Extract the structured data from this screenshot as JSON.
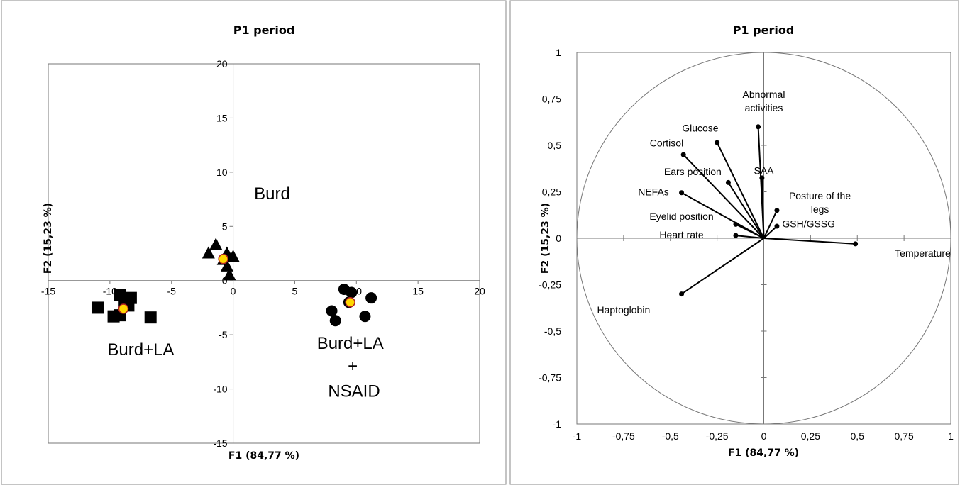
{
  "chart_data": [
    {
      "type": "scatter",
      "title": "P1 period",
      "xlabel": "F1 (84,77 %)",
      "ylabel": "F2 (15,23 %)",
      "xlim": [
        -15,
        20
      ],
      "ylim": [
        -15,
        20
      ],
      "x_ticks": [
        "-15",
        "-10",
        "-5",
        "0",
        "5",
        "10",
        "15",
        "20"
      ],
      "y_ticks": [
        "-15",
        "-10",
        "-5",
        "0",
        "5",
        "10",
        "15",
        "20"
      ],
      "x_tick_values": [
        -15,
        -10,
        -5,
        0,
        5,
        10,
        15,
        20
      ],
      "y_tick_values": [
        -15,
        -10,
        -5,
        0,
        5,
        10,
        15,
        20
      ],
      "grid": false,
      "series": [
        {
          "marker": "triangle",
          "color": "#000000",
          "points": [
            [
              -2.0,
              2.5
            ],
            [
              -1.4,
              3.3
            ],
            [
              -0.5,
              2.5
            ],
            [
              0.0,
              2.2
            ],
            [
              -0.5,
              1.3
            ],
            [
              -0.3,
              0.5
            ],
            [
              -0.8,
              1.9
            ]
          ]
        },
        {
          "marker": "square",
          "color": "#000000",
          "points": [
            [
              -11.0,
              -2.5
            ],
            [
              -9.7,
              -3.3
            ],
            [
              -9.2,
              -3.2
            ],
            [
              -9.2,
              -1.3
            ],
            [
              -8.5,
              -2.3
            ],
            [
              -8.3,
              -1.6
            ],
            [
              -6.7,
              -3.4
            ],
            [
              -8.8,
              -2.0
            ]
          ]
        },
        {
          "marker": "circle",
          "color": "#000000",
          "points": [
            [
              8.0,
              -2.8
            ],
            [
              8.3,
              -3.7
            ],
            [
              9.0,
              -0.8
            ],
            [
              9.6,
              -1.1
            ],
            [
              11.2,
              -1.6
            ],
            [
              10.7,
              -3.3
            ],
            [
              9.4,
              -2.0
            ]
          ]
        },
        {
          "marker": "centroid",
          "color": "#ffd700",
          "points": [
            [
              -0.8,
              2.0
            ],
            [
              -8.9,
              -2.6
            ],
            [
              9.5,
              -2.0
            ]
          ]
        }
      ],
      "annotations": [
        {
          "text": "Burd",
          "x": 1.7,
          "y": 7.5
        },
        {
          "text": "Burd+LA",
          "x": -10.2,
          "y": -6.9
        },
        {
          "text": "Burd+LA",
          "x": 6.8,
          "y": -6.3
        },
        {
          "text": "+",
          "x": 9.3,
          "y": -8.4
        },
        {
          "text": "NSAID",
          "x": 7.7,
          "y": -10.7
        }
      ]
    },
    {
      "type": "scatter",
      "subtype": "correlation-circle",
      "title": "P1 period",
      "xlabel": "F1 (84,77 %)",
      "ylabel": "F2 (15,23 %)",
      "xlim": [
        -1,
        1
      ],
      "ylim": [
        -1,
        1
      ],
      "x_ticks": [
        "-1",
        "-0,75",
        "-0,5",
        "-0,25",
        "0",
        "0,25",
        "0,5",
        "0,75",
        "1"
      ],
      "y_ticks": [
        "-1",
        "-0,75",
        "-0,5",
        "-0,25",
        "0",
        "0,25",
        "0,5",
        "0,75",
        "1"
      ],
      "x_tick_values": [
        -1,
        -0.75,
        -0.5,
        -0.25,
        0,
        0.25,
        0.5,
        0.75,
        1
      ],
      "y_tick_values": [
        -1,
        -0.75,
        -0.5,
        -0.25,
        0,
        0.25,
        0.5,
        0.75,
        1
      ],
      "grid": false,
      "variables": [
        {
          "name": "Abnormal",
          "name2": "activities",
          "x": -0.03,
          "y": 0.6,
          "lx": 0.0,
          "ly": 0.755
        },
        {
          "name": "Glucose",
          "x": -0.25,
          "y": 0.515,
          "lx": -0.34,
          "ly": 0.575
        },
        {
          "name": "Cortisol",
          "x": -0.43,
          "y": 0.45,
          "lx": -0.52,
          "ly": 0.495
        },
        {
          "name": "Ears position",
          "x": -0.19,
          "y": 0.3,
          "lx": -0.38,
          "ly": 0.34
        },
        {
          "name": "SAA",
          "x": -0.01,
          "y": 0.325,
          "lx": 0.0,
          "ly": 0.345
        },
        {
          "name": "NEFAs",
          "x": -0.44,
          "y": 0.245,
          "lx": -0.59,
          "ly": 0.23
        },
        {
          "name": "Posture of the",
          "name2": "legs",
          "x": 0.07,
          "y": 0.15,
          "lx": 0.3,
          "ly": 0.21
        },
        {
          "name": "Eyelid position",
          "x": -0.15,
          "y": 0.075,
          "lx": -0.44,
          "ly": 0.1
        },
        {
          "name": "Heart rate",
          "x": -0.15,
          "y": 0.015,
          "lx": -0.44,
          "ly": 0.0
        },
        {
          "name": "GSH/GSSG",
          "x": 0.07,
          "y": 0.065,
          "lx": 0.24,
          "ly": 0.06
        },
        {
          "name": "Temperature",
          "x": 0.49,
          "y": -0.03,
          "lx": 0.85,
          "ly": -0.1
        },
        {
          "name": "Haptoglobin",
          "x": -0.44,
          "y": -0.3,
          "lx": -0.75,
          "ly": -0.405
        }
      ]
    }
  ]
}
